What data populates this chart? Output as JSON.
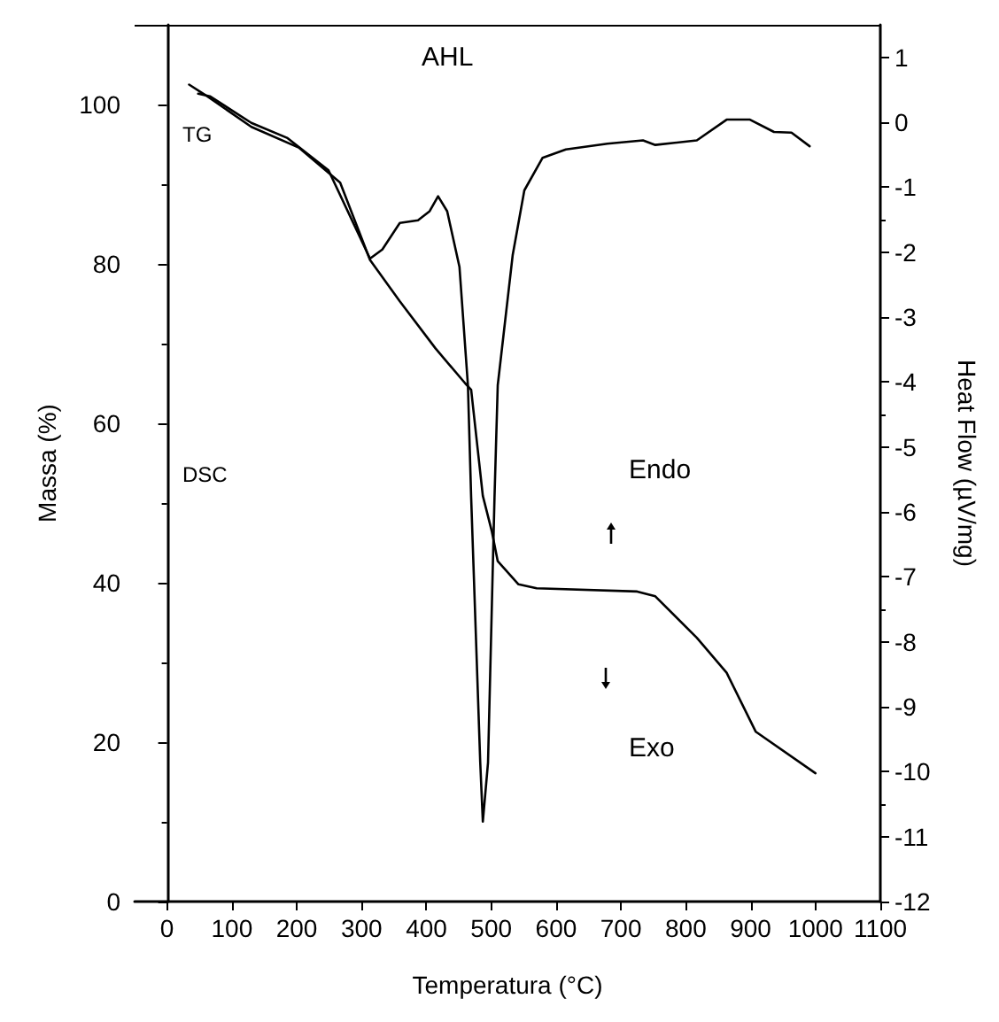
{
  "chart_data": {
    "type": "line",
    "title": "AHL",
    "xlabel": "Temperatura (°C)",
    "ylabel": "Massa (%)",
    "y2label": "Heat Flow (µV/mg)",
    "annotations": [
      "TG",
      "DSC",
      "Endo",
      "Exo"
    ],
    "xlim": [
      -50,
      1100
    ],
    "xticks": [
      0,
      100,
      200,
      300,
      400,
      500,
      600,
      700,
      800,
      900,
      1000,
      1100
    ],
    "ylim": [
      0,
      110
    ],
    "yticks": [
      0,
      20,
      40,
      60,
      80,
      100
    ],
    "y2lim": [
      -12,
      1.5
    ],
    "y2ticks": [
      -12,
      -11,
      -10,
      -9,
      -8,
      -7,
      -6,
      -5,
      -4,
      -3,
      -2,
      -1,
      0,
      1
    ],
    "grid": false,
    "marker": "none",
    "line_style": "solid",
    "series": [
      {
        "color": "#000000",
        "x": [
          34,
          57,
          130,
          203,
          267,
          313,
          359,
          414,
          460,
          469,
          487,
          501,
          510,
          542,
          570,
          725,
          753,
          817,
          863,
          908,
          1000
        ],
        "values": [
          102.5,
          101.3,
          97.2,
          94.6,
          90.2,
          80.5,
          75.3,
          69.4,
          65,
          64.2,
          50.9,
          46.4,
          42.7,
          39.8,
          39.3,
          38.9,
          38.3,
          33.1,
          28.7,
          21.3,
          16.1
        ]
      },
      {
        "color": "#000000",
        "axis": "y2",
        "x": [
          48,
          66,
          130,
          185,
          249,
          313,
          332,
          359,
          387,
          405,
          418,
          432,
          451,
          464,
          469,
          483,
          487,
          495,
          505,
          510,
          533,
          551,
          579,
          615,
          679,
          734,
          753,
          817,
          863,
          899,
          936,
          963,
          991
        ],
        "values": [
          0.44,
          0.4,
          -0.01,
          -0.24,
          -0.74,
          -2.1,
          -1.96,
          -1.55,
          -1.51,
          -1.37,
          -1.14,
          -1.37,
          -2.23,
          -4.05,
          -5.78,
          -9.86,
          -10.77,
          -9.86,
          -5.78,
          -4.05,
          -2.05,
          -1.05,
          -0.55,
          -0.42,
          -0.33,
          -0.28,
          -0.35,
          -0.28,
          0.04,
          0.04,
          -0.15,
          -0.16,
          -0.37
        ]
      }
    ]
  }
}
